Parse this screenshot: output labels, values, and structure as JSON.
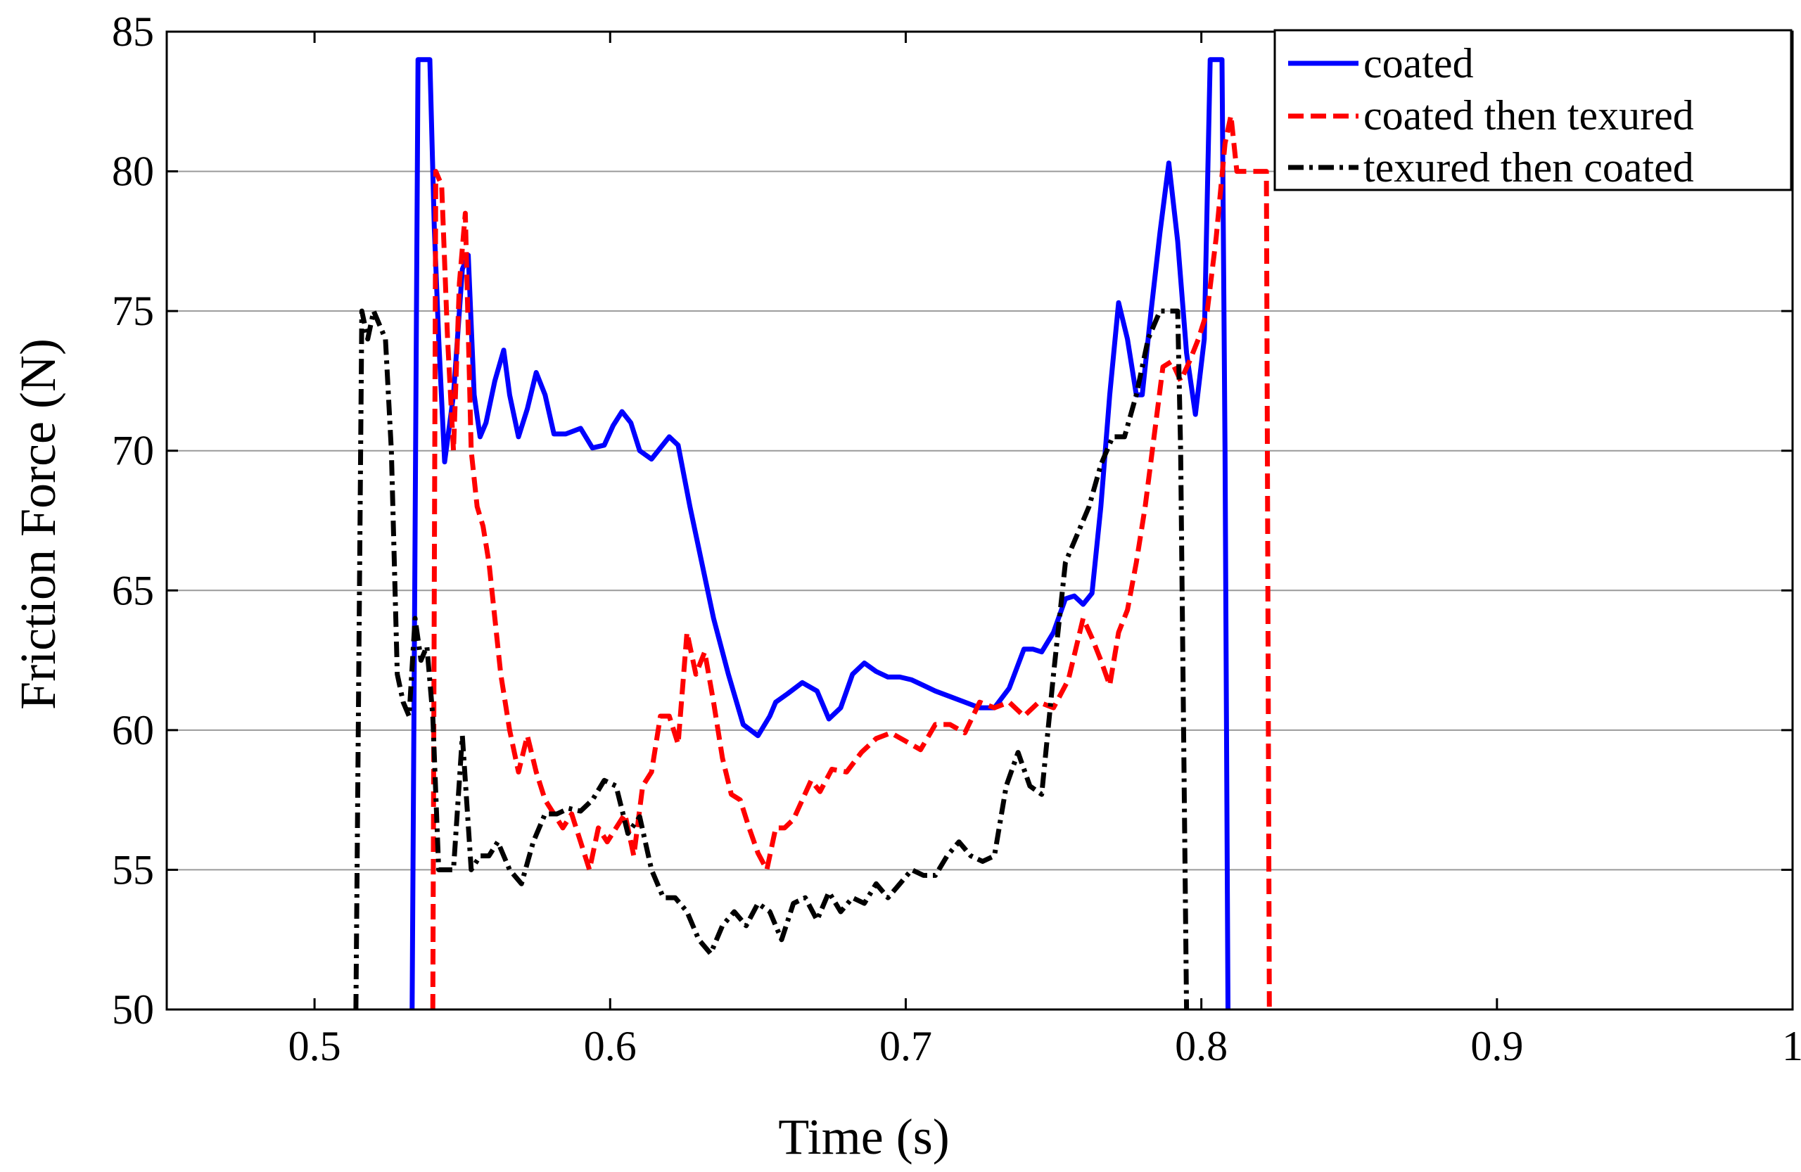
{
  "chart_data": {
    "type": "line",
    "title": "",
    "xlabel": "Time (s)",
    "ylabel": "Friction Force (N)",
    "xlim": [
      0.45,
      1.0
    ],
    "ylim": [
      50,
      85
    ],
    "grid": true,
    "legend_position": "top-right",
    "x_ticks": [
      0.5,
      0.6,
      0.7,
      0.8,
      0.9,
      1.0
    ],
    "x_tick_labels": [
      "0.5",
      "0.6",
      "0.7",
      "0.8",
      "0.9",
      "1"
    ],
    "y_ticks": [
      50,
      55,
      60,
      65,
      70,
      75,
      80,
      85
    ],
    "y_tick_labels": [
      "50",
      "55",
      "60",
      "65",
      "70",
      "75",
      "80",
      "85"
    ],
    "series": [
      {
        "name": "coated",
        "color": "#0000ff",
        "dash": "solid",
        "x": [
          0.533,
          0.535,
          0.537,
          0.539,
          0.5405,
          0.542,
          0.544,
          0.547,
          0.55,
          0.552,
          0.554,
          0.556,
          0.558,
          0.561,
          0.564,
          0.566,
          0.569,
          0.572,
          0.575,
          0.578,
          0.581,
          0.585,
          0.59,
          0.594,
          0.598,
          0.601,
          0.604,
          0.607,
          0.61,
          0.614,
          0.617,
          0.62,
          0.623,
          0.627,
          0.631,
          0.635,
          0.64,
          0.645,
          0.65,
          0.654,
          0.656,
          0.66,
          0.665,
          0.67,
          0.674,
          0.678,
          0.682,
          0.686,
          0.69,
          0.694,
          0.698,
          0.702,
          0.706,
          0.71,
          0.715,
          0.72,
          0.725,
          0.73,
          0.735,
          0.74,
          0.743,
          0.746,
          0.75,
          0.754,
          0.757,
          0.76,
          0.763,
          0.766,
          0.769,
          0.772,
          0.775,
          0.778,
          0.78,
          0.783,
          0.786,
          0.789,
          0.792,
          0.795,
          0.798,
          0.801,
          0.803,
          0.805,
          0.807,
          0.808,
          0.809
        ],
        "y": [
          50,
          84,
          84,
          84,
          78,
          74,
          69.6,
          72,
          76.5,
          77,
          72,
          70.5,
          71,
          72.5,
          73.6,
          72,
          70.5,
          71.5,
          72.8,
          72,
          70.6,
          70.6,
          70.8,
          70.1,
          70.2,
          70.9,
          71.4,
          71,
          70,
          69.7,
          70.1,
          70.5,
          70.2,
          68,
          66,
          64,
          62,
          60.2,
          59.8,
          60.5,
          61,
          61.3,
          61.7,
          61.4,
          60.4,
          60.8,
          62,
          62.4,
          62.1,
          61.9,
          61.9,
          61.8,
          61.6,
          61.4,
          61.2,
          61,
          60.8,
          60.8,
          61.5,
          62.9,
          62.9,
          62.8,
          63.5,
          64.7,
          64.8,
          64.5,
          64.9,
          68,
          72,
          75.3,
          74,
          72,
          72,
          75,
          77.8,
          80.3,
          77.5,
          73.5,
          71.3,
          74,
          84,
          84,
          84,
          70,
          50
        ]
      },
      {
        "name": "coated then texured",
        "color": "#ff0000",
        "dash": "dashed",
        "x": [
          0.54,
          0.541,
          0.543,
          0.545,
          0.547,
          0.549,
          0.551,
          0.553,
          0.555,
          0.557,
          0.559,
          0.561,
          0.563,
          0.566,
          0.569,
          0.572,
          0.575,
          0.578,
          0.581,
          0.584,
          0.587,
          0.59,
          0.593,
          0.596,
          0.599,
          0.602,
          0.605,
          0.608,
          0.611,
          0.614,
          0.617,
          0.62,
          0.623,
          0.626,
          0.629,
          0.632,
          0.635,
          0.638,
          0.641,
          0.644,
          0.647,
          0.65,
          0.653,
          0.656,
          0.659,
          0.662,
          0.665,
          0.668,
          0.671,
          0.675,
          0.68,
          0.685,
          0.69,
          0.695,
          0.7,
          0.705,
          0.71,
          0.715,
          0.72,
          0.725,
          0.73,
          0.735,
          0.74,
          0.745,
          0.75,
          0.755,
          0.76,
          0.763,
          0.766,
          0.769,
          0.772,
          0.775,
          0.778,
          0.781,
          0.784,
          0.787,
          0.79,
          0.793,
          0.796,
          0.799,
          0.802,
          0.805,
          0.808,
          0.81,
          0.812,
          0.814,
          0.816,
          0.819,
          0.822,
          0.823
        ],
        "y": [
          50,
          80,
          79.5,
          74,
          70,
          76,
          78.5,
          70,
          68,
          67.3,
          66,
          64,
          62,
          60,
          58.5,
          59.8,
          58.5,
          57.5,
          57,
          56.5,
          57,
          56,
          55,
          56.5,
          56,
          56.5,
          57,
          55.5,
          58,
          58.5,
          60.5,
          60.5,
          59.5,
          63.5,
          62,
          62.8,
          61,
          59,
          57.7,
          57.5,
          56.5,
          55.6,
          55,
          56.5,
          56.5,
          56.8,
          57.5,
          58.2,
          57.8,
          58.6,
          58.5,
          59.2,
          59.7,
          59.9,
          59.6,
          59.3,
          60.2,
          60.2,
          59.9,
          61,
          60.8,
          61,
          60.5,
          61,
          60.8,
          61.8,
          64,
          63.3,
          62.5,
          61.6,
          63.5,
          64.3,
          66,
          68,
          70.5,
          73,
          73.2,
          72.5,
          73.2,
          74,
          75,
          77.6,
          81,
          82,
          80,
          80,
          80,
          80,
          80,
          50
        ]
      },
      {
        "name": "texured then coated",
        "color": "#000000",
        "dash": "dashdot",
        "x": [
          0.514,
          0.516,
          0.518,
          0.52,
          0.522,
          0.524,
          0.526,
          0.528,
          0.53,
          0.532,
          0.534,
          0.536,
          0.538,
          0.54,
          0.542,
          0.544,
          0.547,
          0.55,
          0.553,
          0.556,
          0.559,
          0.562,
          0.566,
          0.57,
          0.574,
          0.578,
          0.582,
          0.586,
          0.59,
          0.594,
          0.598,
          0.602,
          0.606,
          0.61,
          0.614,
          0.618,
          0.622,
          0.626,
          0.63,
          0.634,
          0.638,
          0.642,
          0.646,
          0.65,
          0.654,
          0.658,
          0.662,
          0.666,
          0.67,
          0.674,
          0.678,
          0.682,
          0.686,
          0.69,
          0.694,
          0.698,
          0.702,
          0.706,
          0.71,
          0.714,
          0.718,
          0.722,
          0.726,
          0.73,
          0.734,
          0.738,
          0.742,
          0.746,
          0.75,
          0.754,
          0.758,
          0.762,
          0.766,
          0.77,
          0.774,
          0.778,
          0.782,
          0.786,
          0.788,
          0.79,
          0.792,
          0.793,
          0.794,
          0.795
        ],
        "y": [
          50,
          75,
          74,
          75,
          74.5,
          74,
          70,
          62,
          61,
          60.5,
          64,
          62.5,
          63,
          60.5,
          55,
          55,
          55,
          59.8,
          55,
          55.5,
          55.5,
          56,
          55,
          54.5,
          56,
          57,
          57,
          57.2,
          57.1,
          57.5,
          58.2,
          58,
          56.3,
          56.9,
          55,
          54,
          54,
          53.5,
          52.5,
          52,
          53,
          53.5,
          53,
          53.8,
          53.5,
          52.5,
          53.8,
          54,
          53.2,
          54.2,
          53.5,
          54,
          53.8,
          54.5,
          54,
          54.5,
          55,
          54.8,
          54.8,
          55.5,
          56,
          55.5,
          55.3,
          55.5,
          58,
          59.2,
          58,
          57.7,
          62,
          66,
          67,
          68,
          69.5,
          70.5,
          70.5,
          72,
          74,
          75,
          75,
          75,
          75,
          70,
          60,
          50
        ]
      }
    ]
  }
}
